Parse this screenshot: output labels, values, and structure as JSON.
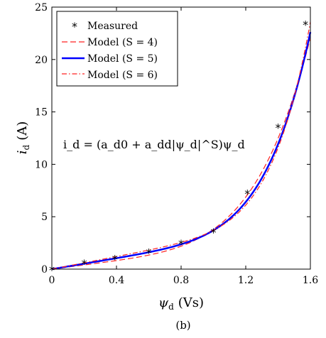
{
  "chart_data": {
    "type": "line",
    "xlim": [
      0,
      1.6
    ],
    "ylim": [
      0,
      25
    ],
    "xticks": [
      "0",
      "0.4",
      "0.8",
      "1.2",
      "1.6"
    ],
    "xtick_values": [
      0,
      0.4,
      0.8,
      1.2,
      1.6
    ],
    "yticks": [
      "0",
      "5",
      "10",
      "15",
      "20",
      "25"
    ],
    "ytick_values": [
      0,
      5,
      10,
      15,
      20,
      25
    ],
    "xlabel_main": "ψ",
    "xlabel_sub": "d",
    "xlabel_unit": "(Vs)",
    "ylabel_main": "i",
    "ylabel_sub": "d",
    "ylabel_unit": "(A)",
    "equation": "i_d = (a_d0 + a_dd|ψ_d|^S)ψ_d",
    "caption": "(b)",
    "grid": false,
    "legend_position": "top-left",
    "series": [
      {
        "name": "Measured",
        "kind": "markers",
        "color": "#000000",
        "x": [
          0,
          0.2,
          0.39,
          0.6,
          0.8,
          1.0,
          1.21,
          1.4,
          1.57
        ],
        "y": [
          0,
          0.6,
          1.05,
          1.65,
          2.5,
          3.6,
          7.3,
          13.6,
          23.4
        ]
      },
      {
        "name": "Model (S = 4)",
        "kind": "model",
        "style": "dashed",
        "color": "#ff2020",
        "a_d0": 2.0,
        "a_dd": 1.8,
        "S": 4
      },
      {
        "name": "Model (S = 5)",
        "kind": "model",
        "style": "solid",
        "color": "#0000ff",
        "a_d0": 2.6,
        "a_dd": 1.1,
        "S": 5
      },
      {
        "name": "Model (S = 6)",
        "kind": "model",
        "style": "dashdot",
        "color": "#ff2020",
        "a_d0": 3.0,
        "a_dd": 0.7,
        "S": 6
      }
    ]
  }
}
